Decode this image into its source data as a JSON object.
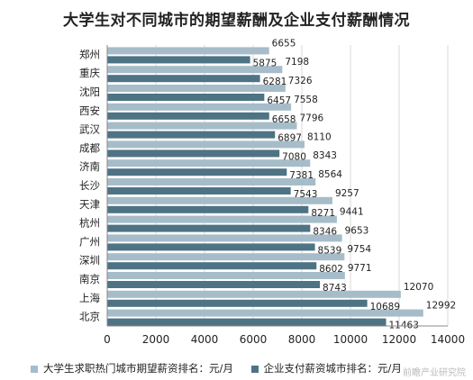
{
  "chart_data": {
    "type": "bar",
    "orientation": "horizontal",
    "title": "大学生对不同城市的期望薪酬及企业支付薪酬情况",
    "categories": [
      "郑州",
      "重庆",
      "沈阳",
      "西安",
      "武汉",
      "成都",
      "济南",
      "长沙",
      "天津",
      "杭州",
      "广州",
      "深圳",
      "南京",
      "上海",
      "北京"
    ],
    "series": [
      {
        "name": "大学生求职热门城市期望薪资排名：元/月",
        "color": "#a6bcc9",
        "values": [
          6655,
          7198,
          7326,
          7558,
          7796,
          8110,
          8343,
          8564,
          9257,
          9441,
          9653,
          9754,
          9771,
          12070,
          12992
        ]
      },
      {
        "name": "企业支付薪资城市排名：元/月",
        "color": "#4e7384",
        "values": [
          5875,
          6281,
          6457,
          6658,
          6897,
          7080,
          7381,
          7543,
          8271,
          8346,
          8539,
          8602,
          8743,
          10689,
          11463
        ]
      }
    ],
    "xlim": [
      0,
      14000
    ],
    "xticks": [
      0,
      2000,
      4000,
      6000,
      8000,
      10000,
      12000,
      14000
    ],
    "xlabel": "",
    "ylabel": "",
    "grid": "vertical",
    "legend": "bottom"
  },
  "watermark": "前瞻产业研究院"
}
